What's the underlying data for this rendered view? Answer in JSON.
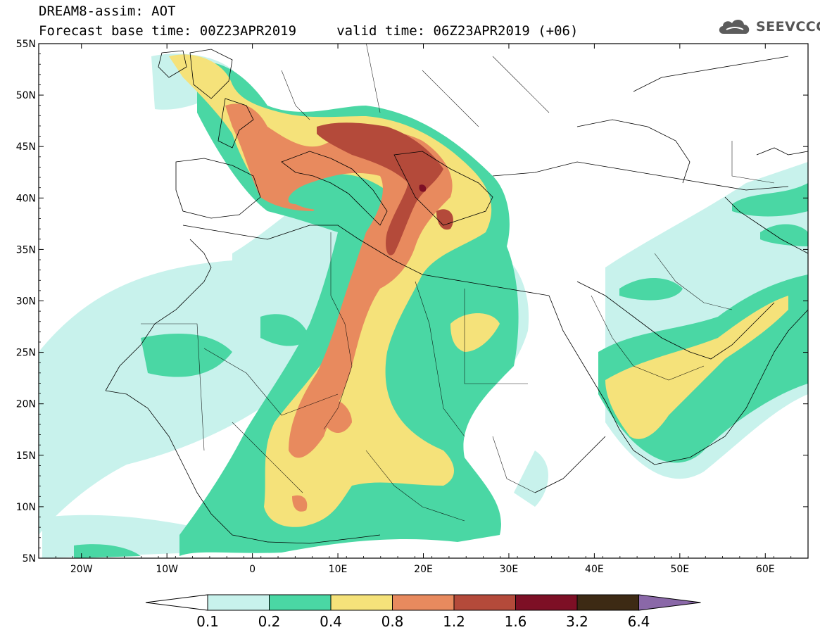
{
  "header": {
    "line1": "DREAM8-assim: AOT",
    "line2": "Forecast base time: 00Z23APR2019     valid time: 06Z23APR2019 (+06)"
  },
  "logo": {
    "text": "SEEVCCC",
    "icon": "cloud-icon"
  },
  "axes": {
    "lat_labels": [
      "55N",
      "50N",
      "45N",
      "40N",
      "35N",
      "30N",
      "25N",
      "20N",
      "15N",
      "10N",
      "5N"
    ],
    "lat_values": [
      55,
      50,
      45,
      40,
      35,
      30,
      25,
      20,
      15,
      10,
      5
    ],
    "lon_labels": [
      "20W",
      "10W",
      "0",
      "10E",
      "20E",
      "30E",
      "40E",
      "50E",
      "60E"
    ],
    "lon_values": [
      -20,
      -10,
      0,
      10,
      20,
      30,
      40,
      50,
      60
    ],
    "lon_range": [
      -25,
      65
    ],
    "lat_range": [
      5,
      55
    ]
  },
  "colorbar": {
    "levels": [
      "0.1",
      "0.2",
      "0.4",
      "0.8",
      "1.2",
      "1.6",
      "3.2",
      "6.4"
    ],
    "colors": [
      "#ffffff",
      "#c8f2ec",
      "#4ad7a4",
      "#f5e27a",
      "#e88a5e",
      "#b44a3a",
      "#7d0f25",
      "#3d2a14",
      "#8a68a8"
    ]
  }
}
